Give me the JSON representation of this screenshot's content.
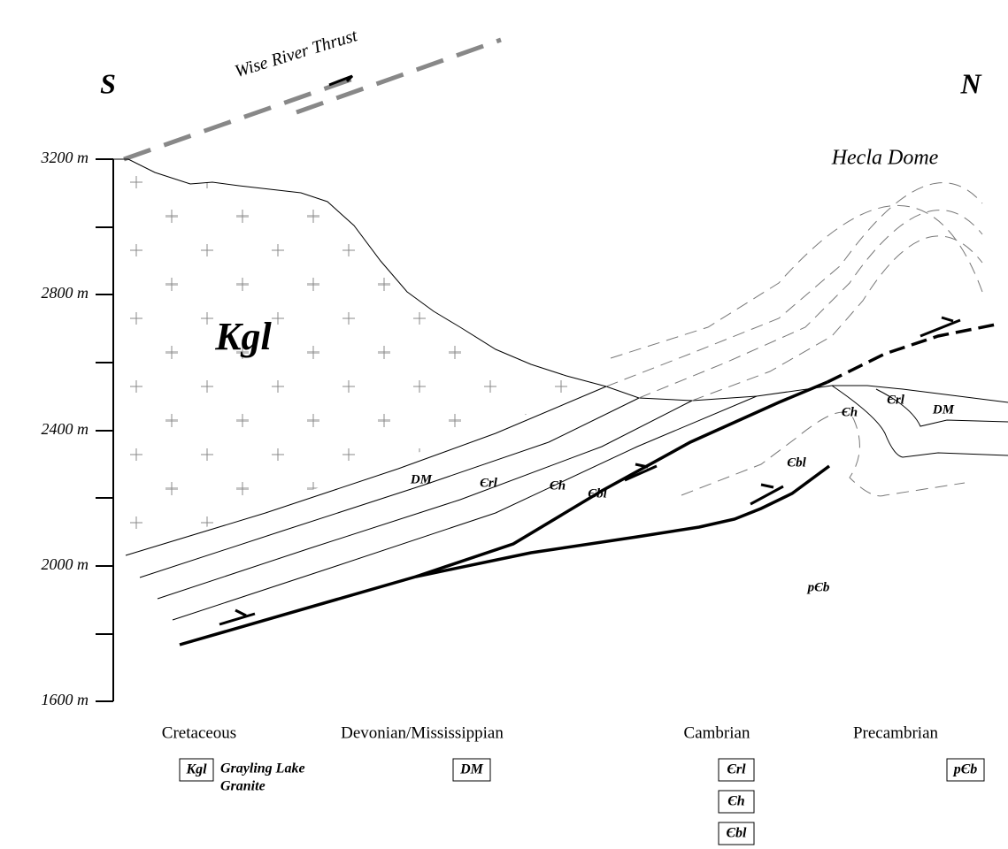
{
  "header": {
    "thrust": "Wise River Thrust",
    "south": "S",
    "north": "N",
    "dome": "Hecla Dome"
  },
  "axis": {
    "labels": [
      "3200 m",
      "2800 m",
      "2400 m",
      "2000 m",
      "1600 m"
    ]
  },
  "units": {
    "kgl": "Kgl",
    "dm": "DM",
    "crl": "Єrl",
    "ch": "Єh",
    "cbl": "Єbl",
    "ch_dome": "Єh",
    "crl_dome": "Єrl",
    "dm_dome": "DM",
    "cbl_dome": "Єbl",
    "pcb": "pЄb"
  },
  "legend": {
    "periods": [
      "Cretaceous",
      "Devonian/Mississippian",
      "Cambrian",
      "Precambrian"
    ],
    "kgl": "Kgl",
    "kgl_name": [
      "Grayling Lake",
      "Granite"
    ],
    "dm": "DM",
    "crl": "Єrl",
    "ch": "Єh",
    "cbl": "Єbl",
    "pcb": "pЄb"
  }
}
